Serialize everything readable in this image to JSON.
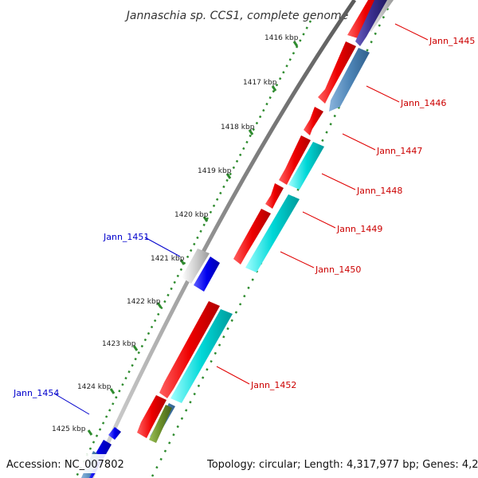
{
  "title": "Jannaschia sp. CCS1, complete genome",
  "footer": {
    "accession": "Accession: NC_007802",
    "topology": "Topology: circular; Length: 4,317,977 bp; Genes: 4,264"
  },
  "kbp_ticks": [
    "1416 kbp",
    "1417 kbp",
    "1418 kbp",
    "1419 kbp",
    "1420 kbp",
    "1421 kbp",
    "1422 kbp",
    "1423 kbp",
    "1424 kbp",
    "1425 kbp"
  ],
  "gene_labels": {
    "jann_1445": "Jann_1445",
    "jann_1446": "Jann_1446",
    "jann_1447": "Jann_1447",
    "jann_1448": "Jann_1448",
    "jann_1449": "Jann_1449",
    "jann_1450": "Jann_1450",
    "jann_1451": "Jann_1451",
    "jann_1452": "Jann_1452",
    "jann_1454": "Jann_1454"
  },
  "colors": {
    "forward_label": "#cc0000",
    "reverse_label": "#0000cc",
    "backbone": "#8a8a8a",
    "tick_dots": "#2e8b2e",
    "gene_red": "#ee0000",
    "gene_blue": "#0000ee",
    "gene_cyan": "#00d0d0",
    "gene_steel": "#4f86b8",
    "gene_gray": "#c8c8c8",
    "gene_navy": "#3a2f8f",
    "gene_olive": "#6b8f2a"
  }
}
